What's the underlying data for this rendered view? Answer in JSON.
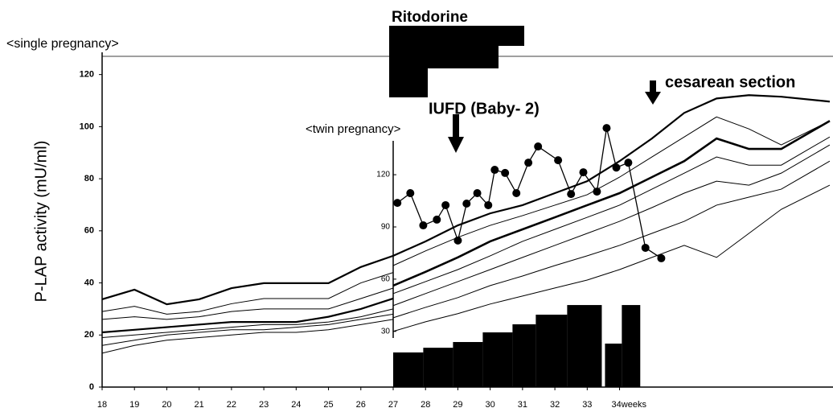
{
  "chart_data": {
    "type": "line",
    "ylabel": "P-LAP activity (mU/ml)",
    "annotations": [
      "Ritodorine",
      "<single pregnancy>",
      "<twin pregnancy>",
      "IUFD (Baby- 2)",
      "cesarean section"
    ],
    "xlim": [
      18,
      40.6
    ],
    "xticks": [
      18,
      19,
      20,
      21,
      22,
      23,
      24,
      25,
      26,
      27,
      28,
      29,
      30,
      31,
      32,
      33,
      {
        "value": 34,
        "label": "34weeks"
      }
    ],
    "ylim": [
      0,
      127
    ],
    "yticks": [
      0,
      20,
      40,
      60,
      80,
      100,
      120
    ],
    "y2lim": [
      -2,
      188
    ],
    "y2ticks": [
      30,
      60,
      90,
      120
    ],
    "series": [
      {
        "color": "#000",
        "width": 2.2,
        "x": [
          18,
          19,
          20,
          21,
          22,
          23,
          24,
          25,
          26,
          27
        ],
        "values": [
          33.7,
          37.4,
          31.8,
          33.7,
          38,
          39.9,
          39.9,
          39.9,
          46.1,
          50.4
        ]
      },
      {
        "color": "#000",
        "width": 1,
        "x": [
          18,
          19,
          20,
          21,
          22,
          23,
          24,
          25,
          26,
          27
        ],
        "values": [
          29,
          31,
          28,
          29,
          32,
          34,
          34,
          34,
          40,
          44
        ]
      },
      {
        "color": "#000",
        "width": 1,
        "x": [
          18,
          19,
          20,
          21,
          22,
          23,
          24,
          25,
          26,
          27
        ],
        "values": [
          26,
          27,
          26,
          27,
          29,
          30,
          30,
          30,
          34,
          38
        ]
      },
      {
        "color": "#000",
        "width": 2.2,
        "x": [
          18,
          19,
          20,
          21,
          22,
          23,
          24,
          25,
          26,
          27
        ],
        "values": [
          21,
          22,
          23,
          24,
          25,
          25,
          25,
          27,
          30,
          34
        ]
      },
      {
        "color": "#000",
        "width": 1,
        "x": [
          18,
          19,
          20,
          21,
          22,
          23,
          24,
          25,
          26,
          27
        ],
        "values": [
          19,
          20,
          21,
          22,
          23,
          24,
          24,
          25,
          27,
          30
        ]
      },
      {
        "color": "#000",
        "width": 1,
        "x": [
          18,
          19,
          20,
          21,
          22,
          23,
          24,
          25,
          26,
          27
        ],
        "values": [
          16,
          18,
          20,
          21,
          22,
          22,
          23,
          24,
          26,
          28
        ]
      },
      {
        "color": "#000",
        "width": 1,
        "x": [
          18,
          19,
          20,
          21,
          22,
          23,
          24,
          25,
          26,
          27
        ],
        "values": [
          13,
          16,
          18,
          19,
          20,
          21,
          21,
          22,
          24,
          26
        ]
      },
      {
        "color": "#000",
        "width": 2.2,
        "axis": "y2",
        "x": [
          27,
          28,
          29,
          30,
          31,
          32,
          33,
          34,
          35,
          36,
          37,
          38,
          39,
          40.5
        ],
        "values": [
          73.4,
          81.7,
          90.9,
          97.8,
          102.5,
          109.4,
          116.3,
          127.8,
          140.8,
          155.5,
          163.8,
          165.7,
          164.8,
          162
        ]
      },
      {
        "color": "#000",
        "width": 1,
        "axis": "y2",
        "x": [
          27,
          28,
          29,
          30,
          31,
          32,
          33,
          34,
          35,
          36,
          37,
          38,
          39,
          40.5
        ],
        "values": [
          67.8,
          76.2,
          84,
          90.9,
          96.5,
          102.5,
          108.5,
          118.6,
          130.2,
          141.7,
          153.2,
          146.3,
          137.1,
          150.9
        ]
      },
      {
        "color": "#000",
        "width": 2.6,
        "axis": "y2",
        "x": [
          27,
          28,
          29,
          30,
          31,
          32,
          33,
          34,
          35,
          36,
          37,
          38,
          39,
          40.5
        ],
        "values": [
          56.3,
          64.2,
          72.5,
          81.7,
          88.6,
          95.5,
          102.5,
          109.4,
          118.6,
          127.8,
          140.8,
          134.8,
          134.8,
          150.9
        ]
      },
      {
        "color": "#000",
        "width": 1,
        "axis": "y2",
        "x": [
          27,
          28,
          29,
          30,
          31,
          32,
          33,
          34,
          35,
          36,
          37,
          38,
          39,
          40.5
        ],
        "values": [
          51.7,
          58.6,
          65.5,
          73.4,
          81.7,
          88.6,
          95.5,
          102.5,
          111.7,
          120.9,
          130.2,
          125.5,
          125.5,
          141.7
        ]
      },
      {
        "color": "#000",
        "width": 1,
        "axis": "y2",
        "x": [
          27,
          28,
          29,
          30,
          31,
          32,
          33,
          34,
          35,
          36,
          37,
          38,
          39,
          40.5
        ],
        "values": [
          44.8,
          51.7,
          58.6,
          65.5,
          72.5,
          79.4,
          86.3,
          93.2,
          101.1,
          109.4,
          116.3,
          114,
          120.9,
          137.1
        ]
      },
      {
        "color": "#000",
        "width": 1,
        "axis": "y2",
        "x": [
          27,
          28,
          29,
          30,
          31,
          32,
          33,
          34,
          35,
          36,
          37,
          38,
          39,
          40.5
        ],
        "values": [
          37.8,
          43.8,
          49.4,
          56.3,
          61.8,
          67.8,
          73.4,
          79.4,
          86.3,
          93.2,
          102.5,
          107.1,
          111.7,
          127.8
        ]
      },
      {
        "color": "#000",
        "width": 1,
        "axis": "y2",
        "x": [
          27,
          28,
          29,
          30,
          31,
          32,
          33,
          34,
          35,
          36,
          37,
          38,
          39,
          40.5
        ],
        "values": [
          30,
          35.5,
          40.2,
          45.7,
          50.3,
          54.9,
          59.5,
          65.5,
          72.5,
          79.4,
          72.5,
          86.3,
          100.1,
          114
        ]
      },
      {
        "color": "#000",
        "width": 1.3,
        "axis": "y2",
        "markers": true,
        "x": [
          27.13,
          27.53,
          27.93,
          28.35,
          28.62,
          29.0,
          29.27,
          29.6,
          29.94,
          30.14,
          30.46,
          30.81,
          31.18,
          31.48,
          32.1,
          32.5,
          32.88,
          33.3,
          33.6,
          33.9,
          34.27,
          34.8,
          35.29
        ],
        "values": [
          103.8,
          109.4,
          90.9,
          94.2,
          102.5,
          82.2,
          103.4,
          109.4,
          102.5,
          122.8,
          121,
          109.4,
          126.9,
          136.2,
          128.3,
          108.9,
          121.4,
          110.3,
          146.8,
          124.1,
          126.9,
          78,
          72
        ]
      }
    ],
    "bars": {
      "color": "#000",
      "edges": [
        27.0,
        27.93,
        28.85,
        29.77,
        30.69,
        31.41,
        32.38,
        33.55,
        34.07,
        34.64
      ],
      "values": [
        13.3,
        15.1,
        17.3,
        21,
        24.1,
        27.8,
        31.5,
        16.7,
        31.5
      ]
    }
  }
}
